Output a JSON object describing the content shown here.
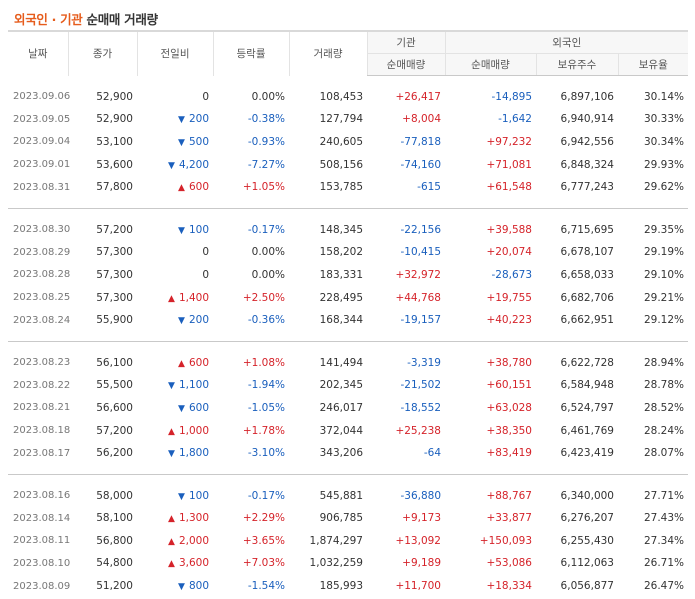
{
  "title": {
    "foreigner": "외국인",
    "dot": "·",
    "institution": "기관",
    "rest": "순매매 거래량"
  },
  "headers": {
    "date": "날짜",
    "close": "종가",
    "change": "전일비",
    "rate": "등락률",
    "volume": "거래량",
    "institution_group": "기관",
    "foreign_group": "외국인",
    "inst_net": "순매매량",
    "foreign_net": "순매매량",
    "foreign_hold": "보유주수",
    "foreign_ratio": "보유율"
  },
  "colors": {
    "up": "#d5232a",
    "down": "#1a5fbd",
    "accent": "#e65c1c"
  },
  "groups": [
    [
      {
        "date": "2023.09.06",
        "close": "52,900",
        "dir": "none",
        "change": "0",
        "rate": "0.00%",
        "volume": "108,453",
        "inst": "+26,417",
        "foreign": "-14,895",
        "hold": "6,897,106",
        "ratio": "30.14%"
      },
      {
        "date": "2023.09.05",
        "close": "52,900",
        "dir": "down",
        "change": "200",
        "rate": "-0.38%",
        "volume": "127,794",
        "inst": "+8,004",
        "foreign": "-1,642",
        "hold": "6,940,914",
        "ratio": "30.33%"
      },
      {
        "date": "2023.09.04",
        "close": "53,100",
        "dir": "down",
        "change": "500",
        "rate": "-0.93%",
        "volume": "240,605",
        "inst": "-77,818",
        "foreign": "+97,232",
        "hold": "6,942,556",
        "ratio": "30.34%"
      },
      {
        "date": "2023.09.01",
        "close": "53,600",
        "dir": "down",
        "change": "4,200",
        "rate": "-7.27%",
        "volume": "508,156",
        "inst": "-74,160",
        "foreign": "+71,081",
        "hold": "6,848,324",
        "ratio": "29.93%"
      },
      {
        "date": "2023.08.31",
        "close": "57,800",
        "dir": "up",
        "change": "600",
        "rate": "+1.05%",
        "volume": "153,785",
        "inst": "-615",
        "foreign": "+61,548",
        "hold": "6,777,243",
        "ratio": "29.62%"
      }
    ],
    [
      {
        "date": "2023.08.30",
        "close": "57,200",
        "dir": "down",
        "change": "100",
        "rate": "-0.17%",
        "volume": "148,345",
        "inst": "-22,156",
        "foreign": "+39,588",
        "hold": "6,715,695",
        "ratio": "29.35%"
      },
      {
        "date": "2023.08.29",
        "close": "57,300",
        "dir": "none",
        "change": "0",
        "rate": "0.00%",
        "volume": "158,202",
        "inst": "-10,415",
        "foreign": "+20,074",
        "hold": "6,678,107",
        "ratio": "29.19%"
      },
      {
        "date": "2023.08.28",
        "close": "57,300",
        "dir": "none",
        "change": "0",
        "rate": "0.00%",
        "volume": "183,331",
        "inst": "+32,972",
        "foreign": "-28,673",
        "hold": "6,658,033",
        "ratio": "29.10%"
      },
      {
        "date": "2023.08.25",
        "close": "57,300",
        "dir": "up",
        "change": "1,400",
        "rate": "+2.50%",
        "volume": "228,495",
        "inst": "+44,768",
        "foreign": "+19,755",
        "hold": "6,682,706",
        "ratio": "29.21%"
      },
      {
        "date": "2023.08.24",
        "close": "55,900",
        "dir": "down",
        "change": "200",
        "rate": "-0.36%",
        "volume": "168,344",
        "inst": "-19,157",
        "foreign": "+40,223",
        "hold": "6,662,951",
        "ratio": "29.12%"
      }
    ],
    [
      {
        "date": "2023.08.23",
        "close": "56,100",
        "dir": "up",
        "change": "600",
        "rate": "+1.08%",
        "volume": "141,494",
        "inst": "-3,319",
        "foreign": "+38,780",
        "hold": "6,622,728",
        "ratio": "28.94%"
      },
      {
        "date": "2023.08.22",
        "close": "55,500",
        "dir": "down",
        "change": "1,100",
        "rate": "-1.94%",
        "volume": "202,345",
        "inst": "-21,502",
        "foreign": "+60,151",
        "hold": "6,584,948",
        "ratio": "28.78%"
      },
      {
        "date": "2023.08.21",
        "close": "56,600",
        "dir": "down",
        "change": "600",
        "rate": "-1.05%",
        "volume": "246,017",
        "inst": "-18,552",
        "foreign": "+63,028",
        "hold": "6,524,797",
        "ratio": "28.52%"
      },
      {
        "date": "2023.08.18",
        "close": "57,200",
        "dir": "up",
        "change": "1,000",
        "rate": "+1.78%",
        "volume": "372,044",
        "inst": "+25,238",
        "foreign": "+38,350",
        "hold": "6,461,769",
        "ratio": "28.24%"
      },
      {
        "date": "2023.08.17",
        "close": "56,200",
        "dir": "down",
        "change": "1,800",
        "rate": "-3.10%",
        "volume": "343,206",
        "inst": "-64",
        "foreign": "+83,419",
        "hold": "6,423,419",
        "ratio": "28.07%"
      }
    ],
    [
      {
        "date": "2023.08.16",
        "close": "58,000",
        "dir": "down",
        "change": "100",
        "rate": "-0.17%",
        "volume": "545,881",
        "inst": "-36,880",
        "foreign": "+88,767",
        "hold": "6,340,000",
        "ratio": "27.71%"
      },
      {
        "date": "2023.08.14",
        "close": "58,100",
        "dir": "up",
        "change": "1,300",
        "rate": "+2.29%",
        "volume": "906,785",
        "inst": "+9,173",
        "foreign": "+33,877",
        "hold": "6,276,207",
        "ratio": "27.43%"
      },
      {
        "date": "2023.08.11",
        "close": "56,800",
        "dir": "up",
        "change": "2,000",
        "rate": "+3.65%",
        "volume": "1,874,297",
        "inst": "+13,092",
        "foreign": "+150,093",
        "hold": "6,255,430",
        "ratio": "27.34%"
      },
      {
        "date": "2023.08.10",
        "close": "54,800",
        "dir": "up",
        "change": "3,600",
        "rate": "+7.03%",
        "volume": "1,032,259",
        "inst": "+9,189",
        "foreign": "+53,086",
        "hold": "6,112,063",
        "ratio": "26.71%"
      },
      {
        "date": "2023.08.09",
        "close": "51,200",
        "dir": "down",
        "change": "800",
        "rate": "-1.54%",
        "volume": "185,993",
        "inst": "+11,700",
        "foreign": "+18,334",
        "hold": "6,056,877",
        "ratio": "26.47%"
      }
    ]
  ]
}
